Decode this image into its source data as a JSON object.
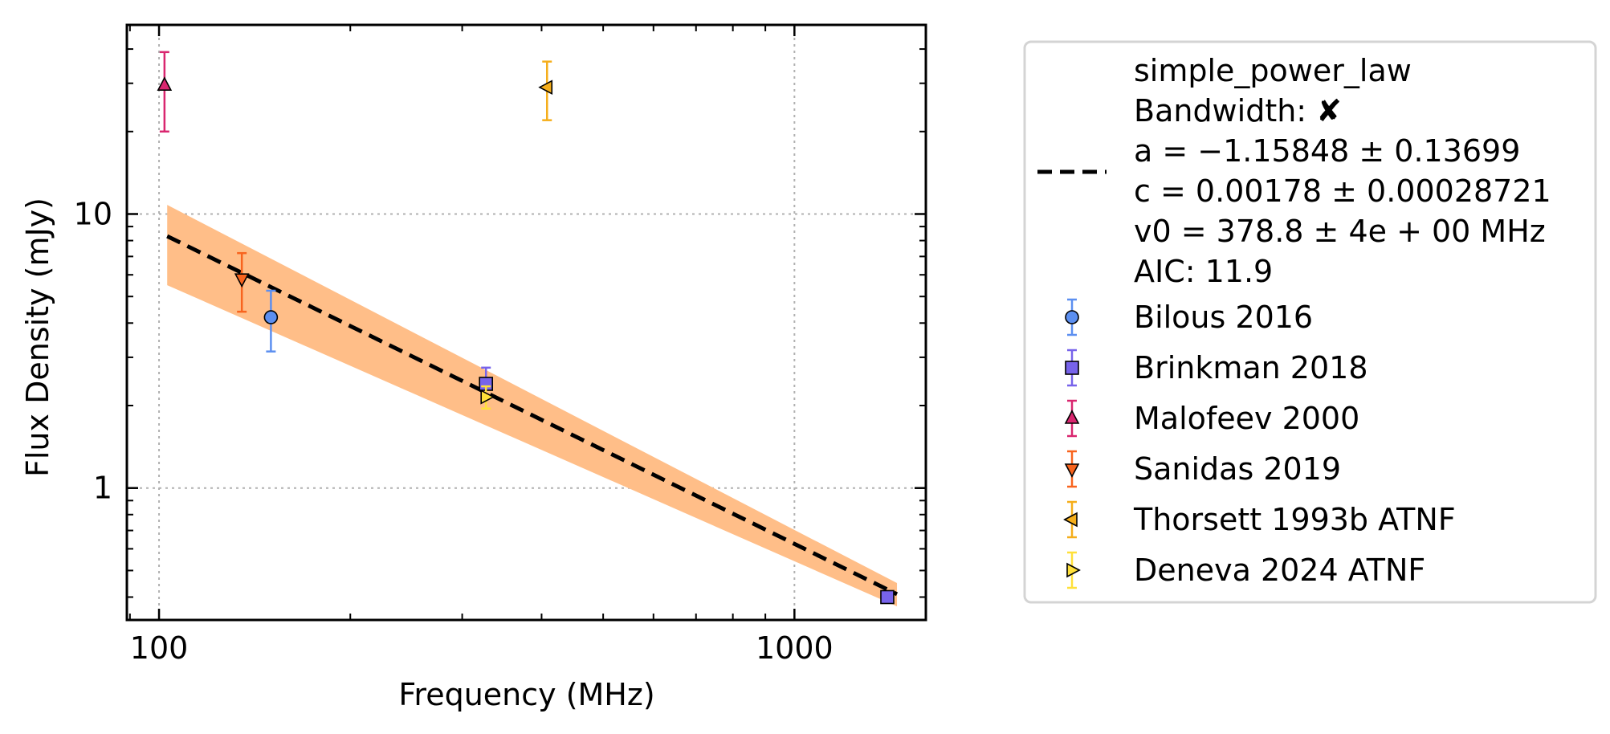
{
  "chart_data": {
    "type": "scatter",
    "xlabel": "Frequency (MHz)",
    "ylabel": "Flux Density (mJy)",
    "xscale": "log",
    "yscale": "log",
    "xlim": [
      89,
      1610
    ],
    "ylim": [
      0.33,
      49
    ],
    "x_ticks": [
      {
        "value": 100,
        "label": "100"
      },
      {
        "value": 1000,
        "label": "1000"
      }
    ],
    "y_ticks": [
      {
        "value": 1,
        "label": "1"
      },
      {
        "value": 10,
        "label": "10"
      }
    ],
    "grid": true,
    "legend_position": "outside-right",
    "fit": {
      "name": "simple_power_law",
      "lines": [
        "simple_power_law",
        "Bandwidth: ✘",
        "a = −1.15848 ± 0.13699",
        "c = 0.00178 ± 0.00028721",
        "v0 = 378.8 ± 4e + 00 MHz",
        "AIC: 11.9"
      ],
      "x": [
        103,
        1450
      ],
      "y": [
        8.3,
        0.41
      ],
      "band_upper": [
        10.8,
        0.45
      ],
      "band_lower": [
        5.5,
        0.37
      ],
      "line_color": "#000000",
      "band_color": "#ffbe88"
    },
    "series": [
      {
        "name": "Bilous 2016",
        "marker": "circle",
        "face": "#5c8ff0",
        "edge": "#5c8ff0",
        "points": [
          {
            "x": 150,
            "y": 4.2,
            "ylo": 3.15,
            "yhi": 5.25
          }
        ]
      },
      {
        "name": "Brinkman 2018",
        "marker": "square",
        "face": "#7763ea",
        "edge": "#7763ea",
        "points": [
          {
            "x": 327,
            "y": 2.4,
            "ylo": 2.15,
            "yhi": 2.75
          },
          {
            "x": 1400,
            "y": 0.4,
            "ylo": 0.39,
            "yhi": 0.41
          }
        ]
      },
      {
        "name": "Malofeev 2000",
        "marker": "triangle-up",
        "face": "#d9266f",
        "edge": "#d9266f",
        "points": [
          {
            "x": 102,
            "y": 29.5,
            "ylo": 20,
            "yhi": 39
          }
        ]
      },
      {
        "name": "Sanidas 2019",
        "marker": "triangle-down",
        "face": "#f8641e",
        "edge": "#f8641e",
        "points": [
          {
            "x": 135,
            "y": 5.8,
            "ylo": 4.4,
            "yhi": 7.2
          }
        ]
      },
      {
        "name": "Thorsett 1993b ATNF",
        "marker": "triangle-left",
        "face": "#f5ae1b",
        "edge": "#f5ae1b",
        "points": [
          {
            "x": 408,
            "y": 29,
            "ylo": 22,
            "yhi": 36
          }
        ]
      },
      {
        "name": "Deneva 2024 ATNF",
        "marker": "triangle-right",
        "face": "#ffe03a",
        "edge": "#ffe03a",
        "points": [
          {
            "x": 327,
            "y": 2.15,
            "ylo": 1.95,
            "yhi": 2.35
          }
        ]
      }
    ]
  }
}
